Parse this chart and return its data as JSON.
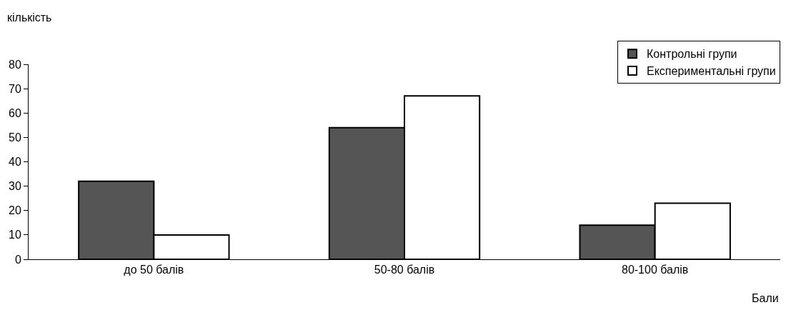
{
  "chart_data": {
    "type": "bar",
    "categories": [
      "до 50 балів",
      "50-80 балів",
      "80-100 балів"
    ],
    "series": [
      {
        "name": "Контрольні групи",
        "color": "#555555",
        "values": [
          32,
          54,
          14
        ]
      },
      {
        "name": "Експериментальні групи",
        "color": "#ffffff",
        "values": [
          10,
          67,
          23
        ]
      }
    ],
    "xlabel": "Бали",
    "ylabel": "кількість",
    "ylim": [
      0,
      80
    ],
    "yticks": [
      0,
      10,
      20,
      30,
      40,
      50,
      60,
      70,
      80
    ],
    "legend": "top right"
  }
}
